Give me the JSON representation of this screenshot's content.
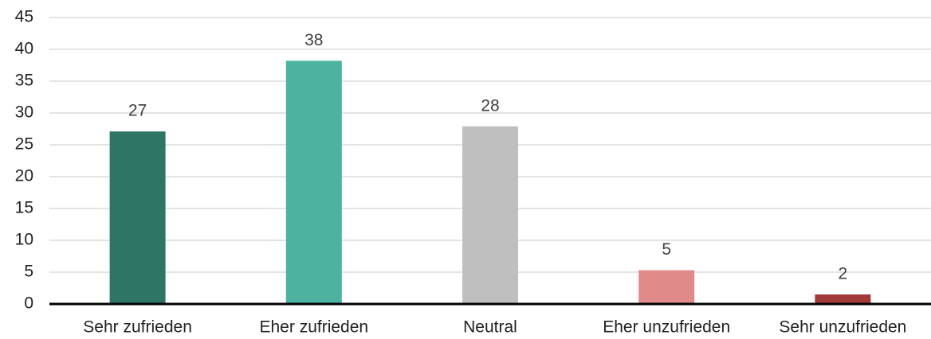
{
  "chart_data": {
    "type": "bar",
    "categories": [
      "Sehr zufrieden",
      "Eher zufrieden",
      "Neutral",
      "Eher unzufrieden",
      "Sehr unzufrieden"
    ],
    "values": [
      27.1,
      38.2,
      27.9,
      5.3,
      1.5
    ],
    "value_labels": [
      "27",
      "38",
      "28",
      "5",
      "2"
    ],
    "colors": [
      "#2e7566",
      "#4db3a0",
      "#bfbfbf",
      "#e08a8a",
      "#a33a3a"
    ],
    "ylim": [
      0,
      45
    ],
    "yticks": [
      0,
      5,
      10,
      15,
      20,
      25,
      30,
      35,
      40,
      45
    ],
    "grid": true
  }
}
